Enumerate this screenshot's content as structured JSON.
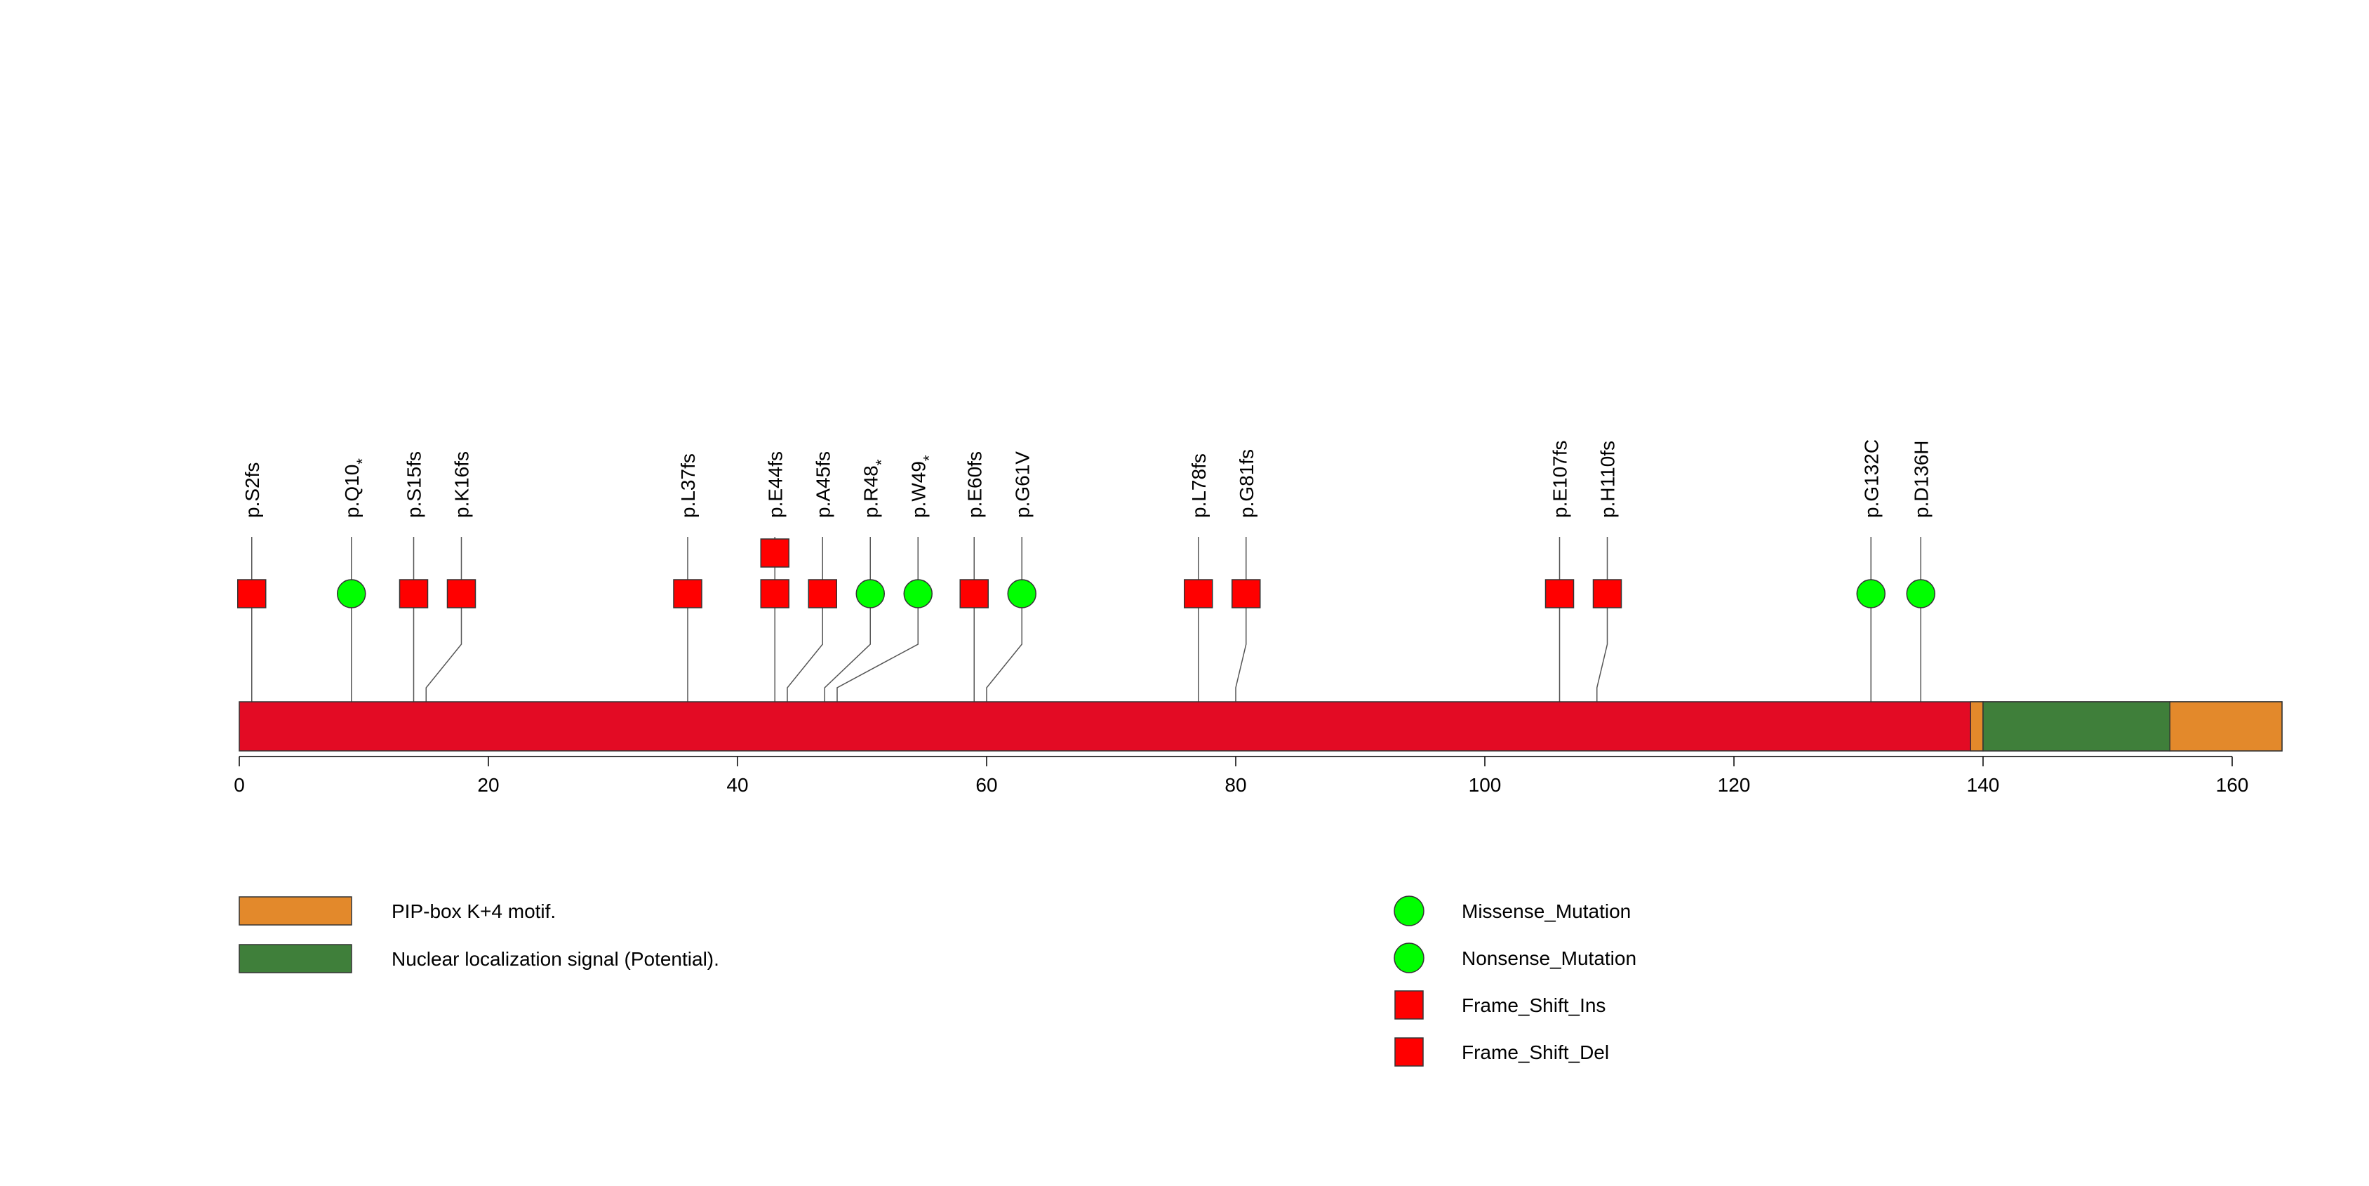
{
  "chart_data": {
    "type": "lollipop",
    "protein_length": 164,
    "x_axis": {
      "ticks": [
        0,
        20,
        40,
        60,
        80,
        100,
        120,
        140,
        160
      ],
      "tick_labels": [
        "0",
        "20",
        "40",
        "60",
        "80",
        "100",
        "120",
        "140",
        "160"
      ]
    },
    "backbone_color": "#e30b24",
    "domains": [
      {
        "name": "PIP-box K+4 motif.",
        "start": 139,
        "end": 140,
        "color": "#e3892b"
      },
      {
        "name": "Nuclear localization signal (Potential).",
        "start": 140,
        "end": 155,
        "color": "#3f7f3a"
      },
      {
        "name": "PIP-box K+4 motif.",
        "start": 155,
        "end": 164,
        "color": "#e3892b"
      }
    ],
    "domain_legend": [
      {
        "label": "PIP-box K+4 motif.",
        "color": "#e3892b"
      },
      {
        "label": "Nuclear localization signal (Potential).",
        "color": "#3f7f3a"
      }
    ],
    "mutation_legend": [
      {
        "label": "Missense_Mutation",
        "shape": "circle",
        "color": "#00ff00"
      },
      {
        "label": "Nonsense_Mutation",
        "shape": "circle",
        "color": "#00ff00"
      },
      {
        "label": "Frame_Shift_Ins",
        "shape": "square",
        "color": "#ff0000"
      },
      {
        "label": "Frame_Shift_Del",
        "shape": "square",
        "color": "#ff0000"
      }
    ],
    "mutations": [
      {
        "label": "p.S2fs",
        "star": false,
        "position": 1,
        "count": 1,
        "shape": "square",
        "color": "#ff0000"
      },
      {
        "label": "p.Q10",
        "star": true,
        "position": 9,
        "count": 1,
        "shape": "circle",
        "color": "#00ff00"
      },
      {
        "label": "p.S15fs",
        "star": false,
        "position": 14,
        "count": 1,
        "shape": "square",
        "color": "#ff0000"
      },
      {
        "label": "p.K16fs",
        "star": false,
        "position": 15,
        "count": 1,
        "shape": "square",
        "color": "#ff0000"
      },
      {
        "label": "p.L37fs",
        "star": false,
        "position": 36,
        "count": 1,
        "shape": "square",
        "color": "#ff0000"
      },
      {
        "label": "p.E44fs",
        "star": false,
        "position": 43,
        "count": 2,
        "shape": "square",
        "color": "#ff0000"
      },
      {
        "label": "p.A45fs",
        "star": false,
        "position": 44,
        "count": 1,
        "shape": "square",
        "color": "#ff0000"
      },
      {
        "label": "p.R48",
        "star": true,
        "position": 47,
        "count": 1,
        "shape": "circle",
        "color": "#00ff00"
      },
      {
        "label": "p.W49",
        "star": true,
        "position": 48,
        "count": 1,
        "shape": "circle",
        "color": "#00ff00"
      },
      {
        "label": "p.E60fs",
        "star": false,
        "position": 59,
        "count": 1,
        "shape": "square",
        "color": "#ff0000"
      },
      {
        "label": "p.G61V",
        "star": false,
        "position": 60,
        "count": 1,
        "shape": "circle",
        "color": "#00ff00"
      },
      {
        "label": "p.L78fs",
        "star": false,
        "position": 77,
        "count": 1,
        "shape": "square",
        "color": "#ff0000"
      },
      {
        "label": "p.G81fs",
        "star": false,
        "position": 80,
        "count": 1,
        "shape": "square",
        "color": "#ff0000"
      },
      {
        "label": "p.E107fs",
        "star": false,
        "position": 106,
        "count": 1,
        "shape": "square",
        "color": "#ff0000"
      },
      {
        "label": "p.H110fs",
        "star": false,
        "position": 109,
        "count": 1,
        "shape": "square",
        "color": "#ff0000"
      },
      {
        "label": "p.G132C",
        "star": false,
        "position": 131,
        "count": 1,
        "shape": "circle",
        "color": "#00ff00"
      },
      {
        "label": "p.D136H",
        "star": false,
        "position": 135,
        "count": 1,
        "shape": "circle",
        "color": "#00ff00"
      }
    ]
  }
}
